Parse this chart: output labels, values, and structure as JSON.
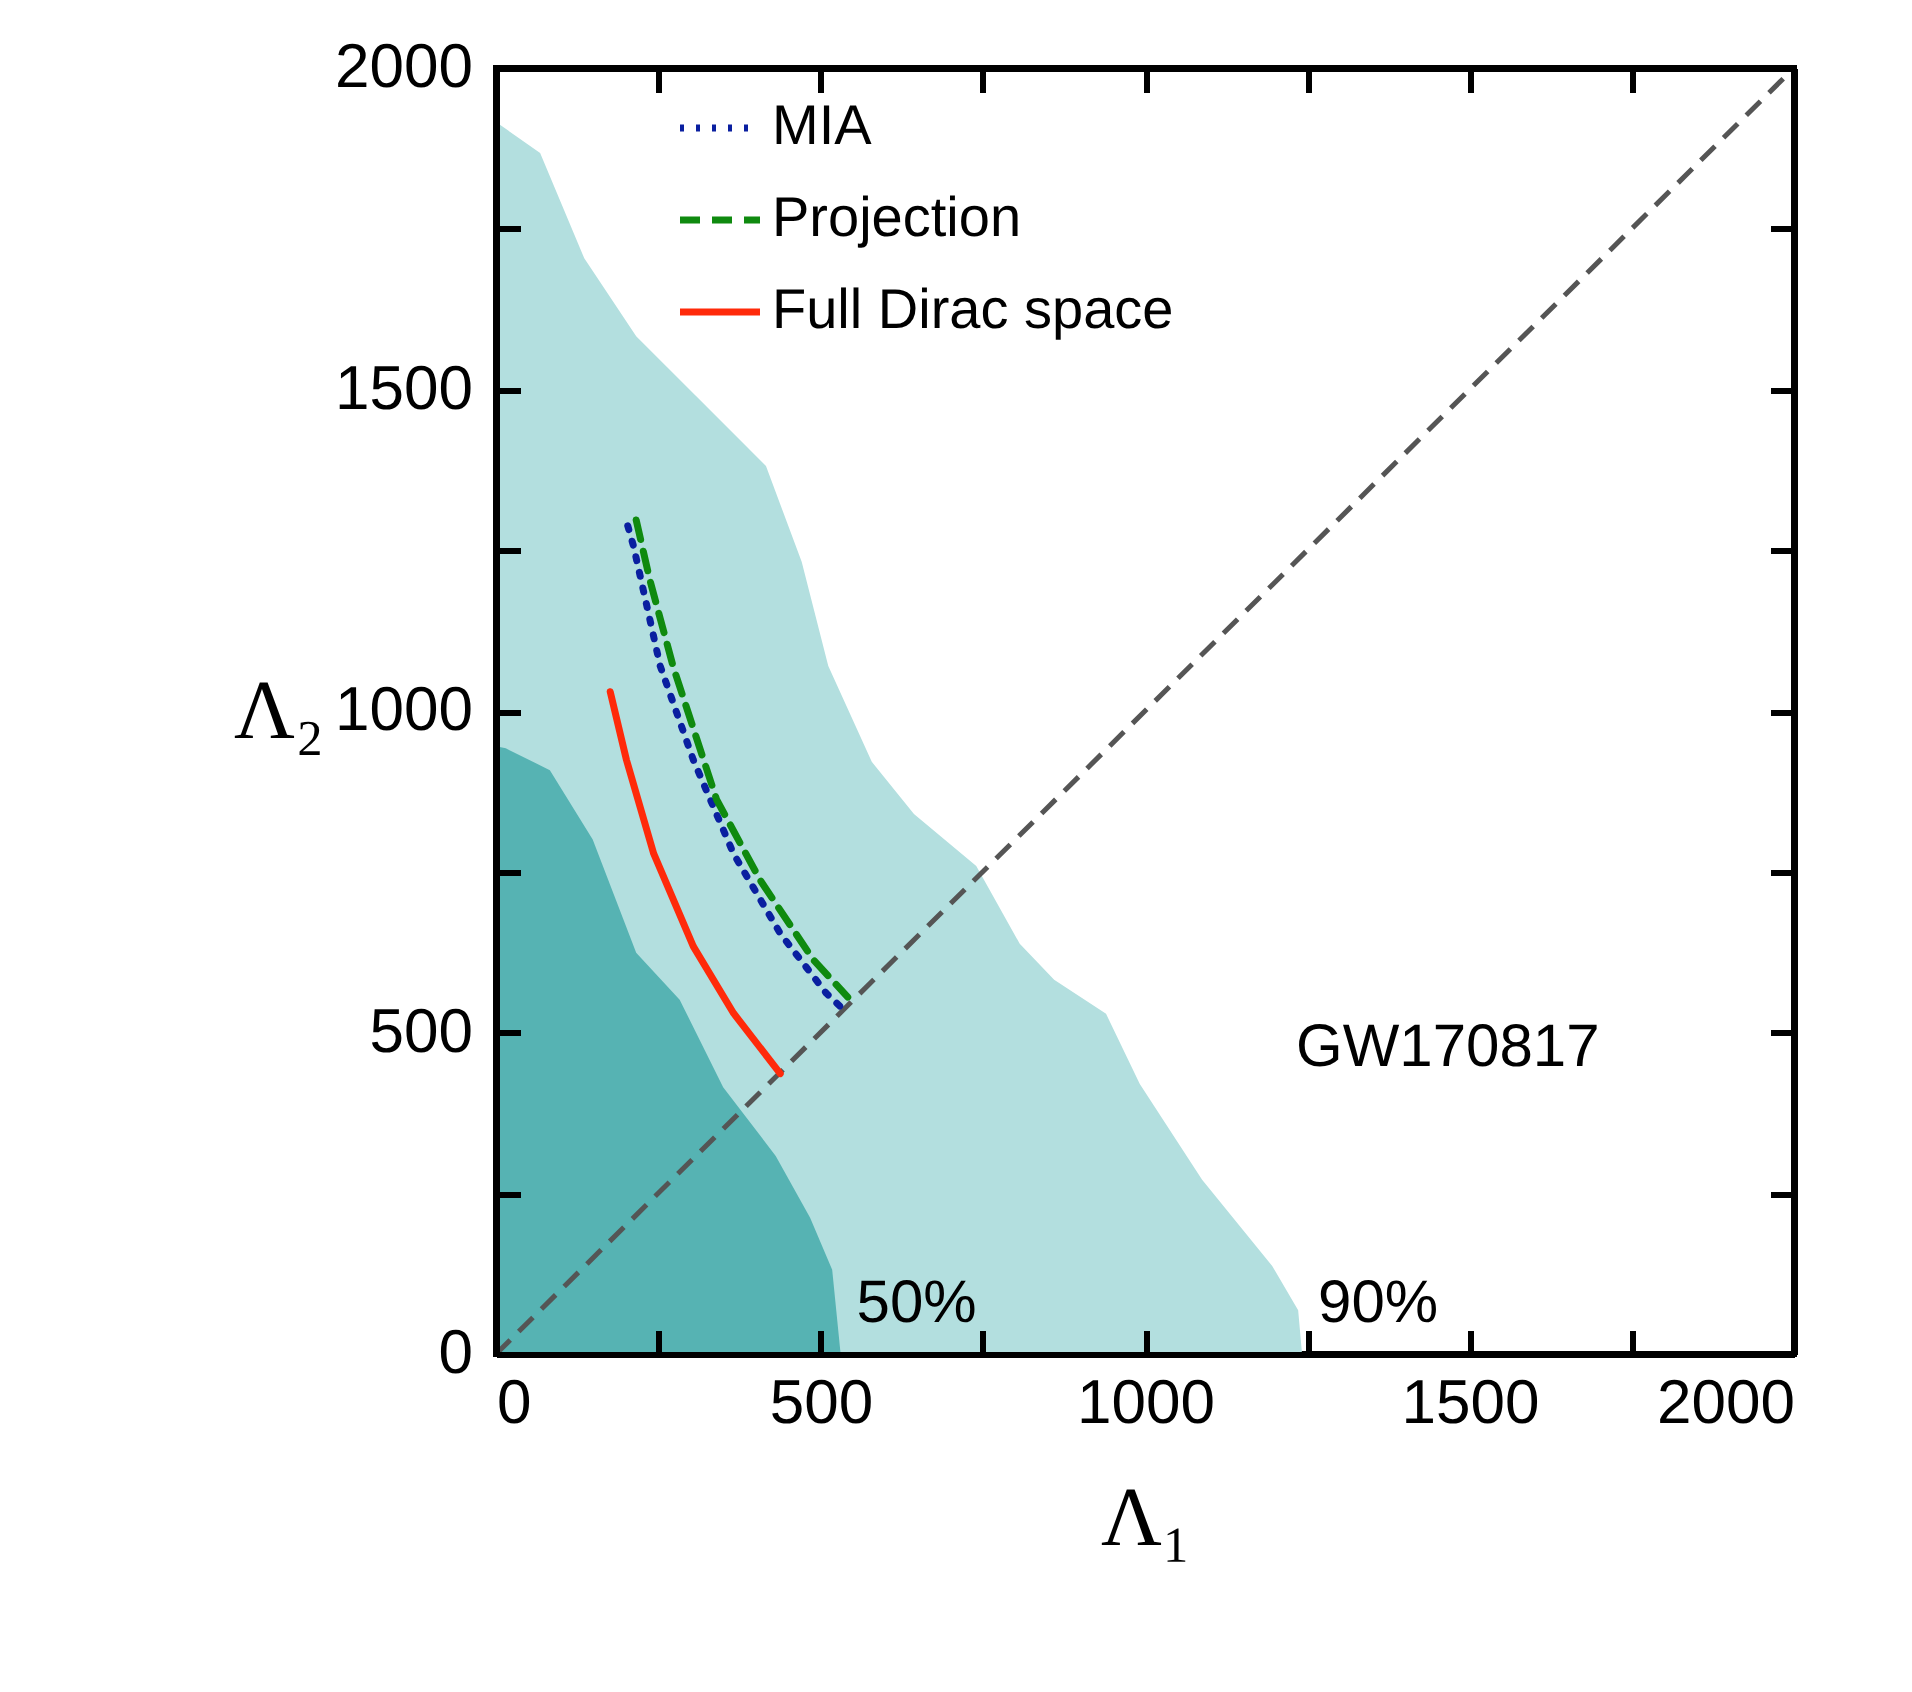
{
  "chart_data": {
    "type": "line",
    "xlabel": "Λ₁",
    "ylabel": "Λ₂",
    "xlim": [
      0,
      2000
    ],
    "ylim": [
      0,
      2000
    ],
    "xticks": [
      0,
      {
        "value": 250,
        "label": null
      },
      500,
      {
        "value": 750,
        "label": null
      },
      1000,
      {
        "value": 1250,
        "label": null
      },
      1500,
      {
        "value": 1750,
        "label": null
      },
      2000
    ],
    "yticks": [
      0,
      {
        "value": 250,
        "label": null
      },
      500,
      {
        "value": 750,
        "label": null
      },
      1000,
      {
        "value": 1250,
        "label": null
      },
      1500,
      {
        "value": 1750,
        "label": null
      },
      2000
    ],
    "grid": false,
    "legend": "top left",
    "marker": "none",
    "annotations": [
      "GW170817"
    ],
    "series": [
      {
        "type": "area",
        "name": "90%",
        "color": "#b3dfdf",
        "x": [
          0,
          68,
          136,
          216,
          324,
          416,
          471,
          512,
          579,
          644,
          740,
          807,
          860,
          940,
          992,
          1088,
          1196,
          1236,
          1242
        ],
        "values": [
          1916,
          1868,
          1704,
          1583,
          1474,
          1381,
          1232,
          1070,
          921,
          840,
          759,
          638,
          582,
          529,
          420,
          271,
          137,
          68,
          0
        ]
      },
      {
        "type": "area",
        "name": "50%",
        "color": "#56b3b3",
        "x": [
          0,
          15,
          83,
          149,
          216,
          283,
          350,
          431,
          484,
          518,
          531
        ],
        "values": [
          945,
          942,
          908,
          800,
          624,
          551,
          415,
          308,
          212,
          131,
          0
        ]
      },
      {
        "type": "line",
        "color": "#555555",
        "line_style": "dashed",
        "x": [
          0,
          2000
        ],
        "values": [
          0,
          2000
        ]
      },
      {
        "type": "line",
        "name": "MIA",
        "color": "#0a1fa0",
        "line_style": "dotted",
        "x": [
          203,
          212,
          253,
          304,
          366,
          438,
          509,
          536
        ],
        "values": [
          1288,
          1256,
          1070,
          924,
          778,
          654,
          561,
          535
        ]
      },
      {
        "type": "line",
        "name": "Projection",
        "color": "#0f8a0f",
        "line_style": "dashed",
        "x": [
          216,
          237,
          273,
          340,
          407,
          489,
          542
        ],
        "values": [
          1297,
          1204,
          1069,
          862,
          737,
          613,
          555
        ]
      },
      {
        "type": "line",
        "name": "Full Dirac space",
        "color": "#ff2a0a",
        "line_style": "solid",
        "x": [
          176,
          201,
          243,
          304,
          366,
          438
        ],
        "values": [
          1030,
          924,
          778,
          634,
          530,
          436
        ]
      }
    ]
  }
}
